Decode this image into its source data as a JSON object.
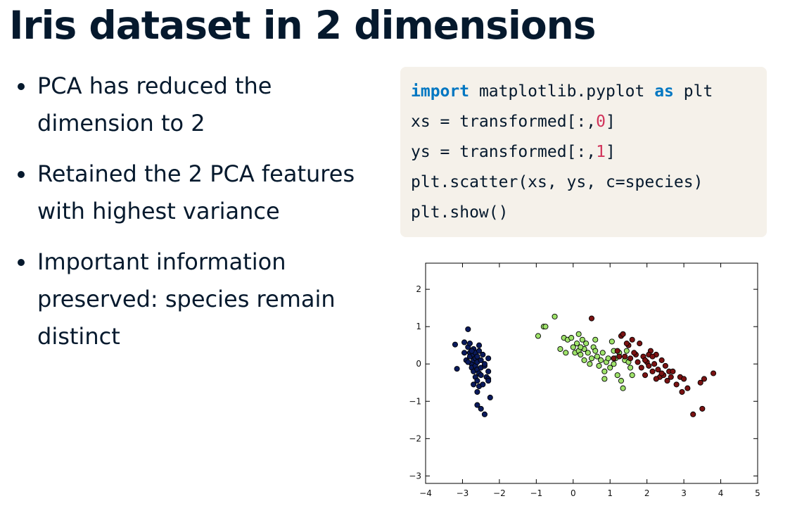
{
  "slide": {
    "title": "Iris dataset in 2 dimensions",
    "bullets": [
      "PCA has reduced the dimension to 2",
      "Retained the 2 PCA features with highest variance",
      "Important information preserved: species remain distinct"
    ]
  },
  "code": {
    "line1": {
      "kw1": "import",
      "t1": " matplotlib.pyplot ",
      "kw2": "as",
      "t2": " plt"
    },
    "line2": {
      "t1": "xs = transformed[:,",
      "num": "0",
      "t2": "]"
    },
    "line3": {
      "t1": "ys = transformed[:,",
      "num": "1",
      "t2": "]"
    },
    "line4": "plt.scatter(xs, ys, c=species)",
    "line5": "plt.show()"
  },
  "chart_data": {
    "type": "scatter",
    "xlim": [
      -4,
      5
    ],
    "ylim": [
      -3.2,
      2.7
    ],
    "xticks": [
      -4,
      -3,
      -2,
      -1,
      0,
      1,
      2,
      3,
      4,
      5
    ],
    "yticks": [
      -3,
      -2,
      -1,
      0,
      1,
      2
    ],
    "xtick_labels": [
      "−4",
      "−3",
      "−2",
      "−1",
      "0",
      "1",
      "2",
      "3",
      "4",
      "5"
    ],
    "ytick_labels": [
      "−3",
      "−2",
      "−1",
      "0",
      "1",
      "2"
    ],
    "grid": false,
    "series": [
      {
        "color": "#0a1a5c",
        "points": [
          [
            -3.2,
            0.52
          ],
          [
            -3.15,
            -0.13
          ],
          [
            -2.95,
            0.58
          ],
          [
            -2.95,
            0.3
          ],
          [
            -2.9,
            0.1
          ],
          [
            -2.85,
            0.93
          ],
          [
            -2.85,
            0.45
          ],
          [
            -2.8,
            0.55
          ],
          [
            -2.8,
            0.3
          ],
          [
            -2.8,
            0.2
          ],
          [
            -2.75,
            0.0
          ],
          [
            -2.75,
            -0.1
          ],
          [
            -2.7,
            0.4
          ],
          [
            -2.7,
            0.25
          ],
          [
            -2.7,
            0.1
          ],
          [
            -2.7,
            -0.2
          ],
          [
            -2.65,
            0.3
          ],
          [
            -2.65,
            0.15
          ],
          [
            -2.65,
            -0.05
          ],
          [
            -2.65,
            -0.35
          ],
          [
            -2.6,
            0.2
          ],
          [
            -2.6,
            0.05
          ],
          [
            -2.6,
            -0.15
          ],
          [
            -2.6,
            -0.45
          ],
          [
            -2.6,
            -0.75
          ],
          [
            -2.55,
            0.35
          ],
          [
            -2.55,
            -0.25
          ],
          [
            -2.55,
            -0.6
          ],
          [
            -2.5,
            0.1
          ],
          [
            -2.5,
            -0.1
          ],
          [
            -2.5,
            -0.3
          ],
          [
            -2.5,
            -1.2
          ],
          [
            -2.45,
            0.25
          ],
          [
            -2.45,
            -0.55
          ],
          [
            -2.4,
            -0.05
          ],
          [
            -2.4,
            0.0
          ],
          [
            -2.4,
            -1.35
          ],
          [
            -2.35,
            -0.35
          ],
          [
            -2.3,
            0.15
          ],
          [
            -2.3,
            -0.2
          ],
          [
            -2.3,
            -0.4
          ],
          [
            -2.25,
            -0.9
          ],
          [
            -2.6,
            -1.1
          ],
          [
            -2.85,
            0.05
          ],
          [
            -2.75,
            0.35
          ],
          [
            -2.3,
            -0.45
          ],
          [
            -2.7,
            -0.55
          ],
          [
            -2.55,
            0.5
          ]
        ]
      },
      {
        "color": "#9ee26a",
        "points": [
          [
            -0.95,
            0.75
          ],
          [
            -0.8,
            1.0
          ],
          [
            -0.75,
            1.0
          ],
          [
            -0.5,
            1.27
          ],
          [
            -0.35,
            0.4
          ],
          [
            -0.25,
            0.7
          ],
          [
            -0.2,
            0.3
          ],
          [
            -0.15,
            0.65
          ],
          [
            -0.05,
            0.7
          ],
          [
            0.0,
            0.45
          ],
          [
            0.05,
            0.3
          ],
          [
            0.1,
            0.55
          ],
          [
            0.15,
            0.8
          ],
          [
            0.15,
            0.35
          ],
          [
            0.2,
            0.25
          ],
          [
            0.25,
            0.65
          ],
          [
            0.3,
            0.4
          ],
          [
            0.3,
            0.1
          ],
          [
            0.35,
            0.55
          ],
          [
            0.4,
            0.3
          ],
          [
            0.45,
            0.0
          ],
          [
            0.5,
            0.15
          ],
          [
            0.55,
            0.45
          ],
          [
            0.6,
            0.35
          ],
          [
            0.65,
            0.2
          ],
          [
            0.7,
            -0.05
          ],
          [
            0.75,
            0.1
          ],
          [
            0.8,
            0.3
          ],
          [
            0.85,
            -0.2
          ],
          [
            0.9,
            0.05
          ],
          [
            0.95,
            0.15
          ],
          [
            1.0,
            -0.1
          ],
          [
            1.05,
            0.6
          ],
          [
            1.1,
            0.0
          ],
          [
            1.15,
            0.15
          ],
          [
            1.2,
            -0.3
          ],
          [
            1.25,
            0.3
          ],
          [
            1.3,
            -0.45
          ],
          [
            1.35,
            -0.65
          ],
          [
            1.4,
            0.1
          ],
          [
            1.45,
            0.35
          ],
          [
            1.5,
            0.05
          ],
          [
            1.55,
            -0.1
          ],
          [
            1.6,
            -0.3
          ],
          [
            0.6,
            0.65
          ],
          [
            0.2,
            0.45
          ],
          [
            0.85,
            -0.4
          ],
          [
            1.1,
            0.35
          ]
        ]
      },
      {
        "color": "#7a1212",
        "points": [
          [
            0.5,
            1.22
          ],
          [
            1.1,
            0.15
          ],
          [
            1.2,
            0.35
          ],
          [
            1.3,
            0.75
          ],
          [
            1.35,
            0.8
          ],
          [
            1.4,
            0.2
          ],
          [
            1.5,
            0.5
          ],
          [
            1.55,
            0.15
          ],
          [
            1.6,
            0.65
          ],
          [
            1.7,
            0.25
          ],
          [
            1.8,
            0.55
          ],
          [
            1.85,
            -0.1
          ],
          [
            1.9,
            0.2
          ],
          [
            1.95,
            -0.3
          ],
          [
            2.0,
            0.05
          ],
          [
            2.05,
            -0.05
          ],
          [
            2.1,
            0.35
          ],
          [
            2.15,
            -0.2
          ],
          [
            2.2,
            0.0
          ],
          [
            2.25,
            0.25
          ],
          [
            2.3,
            -0.15
          ],
          [
            2.35,
            -0.35
          ],
          [
            2.4,
            0.1
          ],
          [
            2.45,
            -0.3
          ],
          [
            2.5,
            -0.05
          ],
          [
            2.55,
            -0.45
          ],
          [
            2.6,
            -0.2
          ],
          [
            2.65,
            -0.35
          ],
          [
            2.8,
            -0.55
          ],
          [
            2.9,
            -0.35
          ],
          [
            2.95,
            -0.75
          ],
          [
            3.1,
            -0.65
          ],
          [
            3.25,
            -1.35
          ],
          [
            3.45,
            -0.5
          ],
          [
            3.5,
            -1.2
          ],
          [
            3.55,
            -0.4
          ],
          [
            3.8,
            -0.25
          ],
          [
            1.75,
            0.05
          ],
          [
            2.05,
            0.25
          ],
          [
            1.65,
            0.3
          ],
          [
            2.25,
            -0.4
          ],
          [
            2.7,
            -0.2
          ],
          [
            1.45,
            0.55
          ],
          [
            1.95,
            0.1
          ],
          [
            2.4,
            -0.25
          ],
          [
            3.0,
            -0.4
          ],
          [
            1.25,
            0.2
          ],
          [
            2.15,
            0.2
          ]
        ]
      }
    ]
  }
}
